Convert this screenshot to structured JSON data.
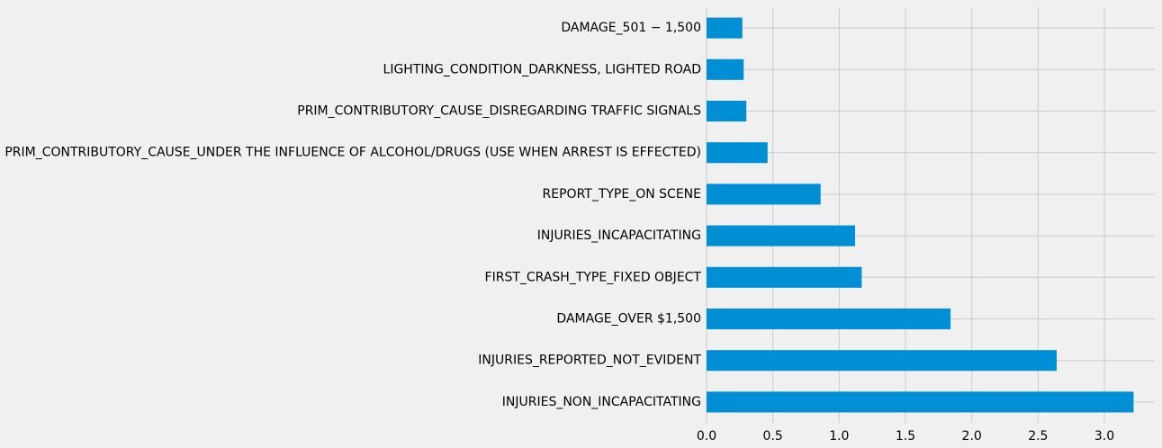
{
  "chart_data": {
    "type": "bar",
    "orientation": "horizontal",
    "categories": [
      "INJURIES_NON_INCAPACITATING",
      "INJURIES_REPORTED_NOT_EVIDENT",
      "DAMAGE_OVER $1,500",
      "FIRST_CRASH_TYPE_FIXED OBJECT",
      "INJURIES_INCAPACITATING",
      "REPORT_TYPE_ON SCENE",
      "PRIM_CONTRIBUTORY_CAUSE_UNDER THE INFLUENCE OF ALCOHOL/DRUGS (USE WHEN ARREST IS EFFECTED)",
      "PRIM_CONTRIBUTORY_CAUSE_DISREGARDING TRAFFIC SIGNALS",
      "LIGHTING_CONDITION_DARKNESS, LIGHTED ROAD",
      "DAMAGE_501 − 1,500"
    ],
    "values": [
      3.22,
      2.64,
      1.84,
      1.17,
      1.12,
      0.86,
      0.46,
      0.3,
      0.28,
      0.27
    ],
    "xlim": [
      0,
      3.38
    ],
    "xticks": [
      0.0,
      0.5,
      1.0,
      1.5,
      2.0,
      2.5,
      3.0
    ],
    "xtick_labels": [
      "0.0",
      "0.5",
      "1.0",
      "1.5",
      "2.0",
      "2.5",
      "3.0"
    ],
    "title": "",
    "xlabel": "",
    "ylabel": "",
    "grid": true,
    "colors": {
      "bar": "#008fd5",
      "background": "#f0f0f0",
      "grid": "#cbcbcb",
      "text": "#000000"
    }
  }
}
